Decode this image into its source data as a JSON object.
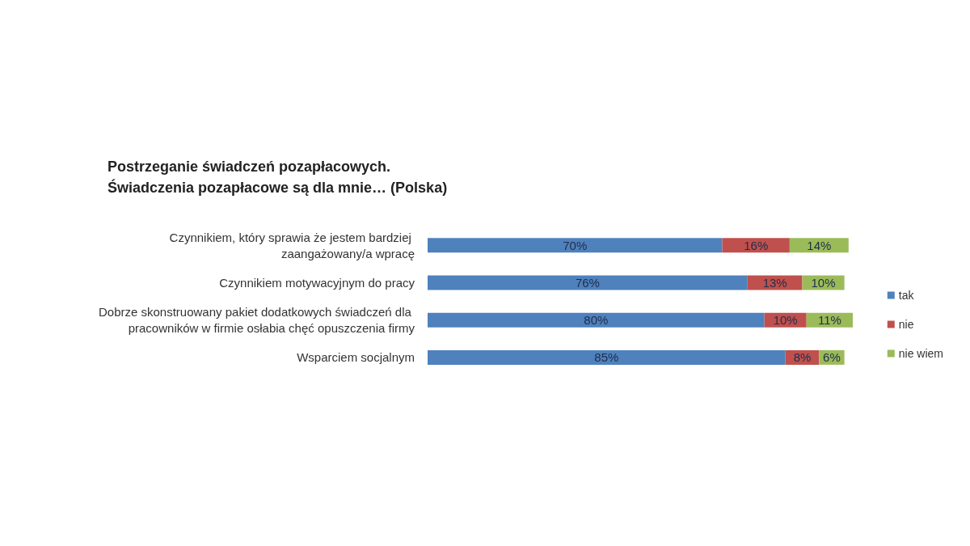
{
  "chart_data": {
    "type": "bar",
    "orientation": "horizontal",
    "stacked": true,
    "title": "Postrzeganie świadczeń pozapłacowych.\nŚwiadczenia pozapłacowe są dla mnie… (Polska)",
    "categories": [
      "Czynnikiem, który sprawia że jestem bardziej zaangażowany/a wpracę",
      "Czynnikiem motywacyjnym do pracy",
      "Dobrze skonstruowany pakiet dodatkowych świadczeń dla pracowników w firmie osłabia chęć opuszczenia firmy",
      "Wsparciem socjalnym"
    ],
    "series": [
      {
        "name": "tak",
        "color": "#4f81bd",
        "values": [
          70,
          76,
          80,
          85
        ],
        "value_labels": [
          "70%",
          "76%",
          "80%",
          "85%"
        ]
      },
      {
        "name": "nie",
        "color": "#c0504d",
        "values": [
          16,
          13,
          10,
          8
        ],
        "value_labels": [
          "16%",
          "13%",
          "10%",
          "8%"
        ]
      },
      {
        "name": "nie wiem",
        "color": "#9bbb59",
        "values": [
          14,
          10,
          11,
          6
        ],
        "value_labels": [
          "14%",
          "10%",
          "11%",
          "6%"
        ]
      }
    ],
    "legend": "right"
  }
}
